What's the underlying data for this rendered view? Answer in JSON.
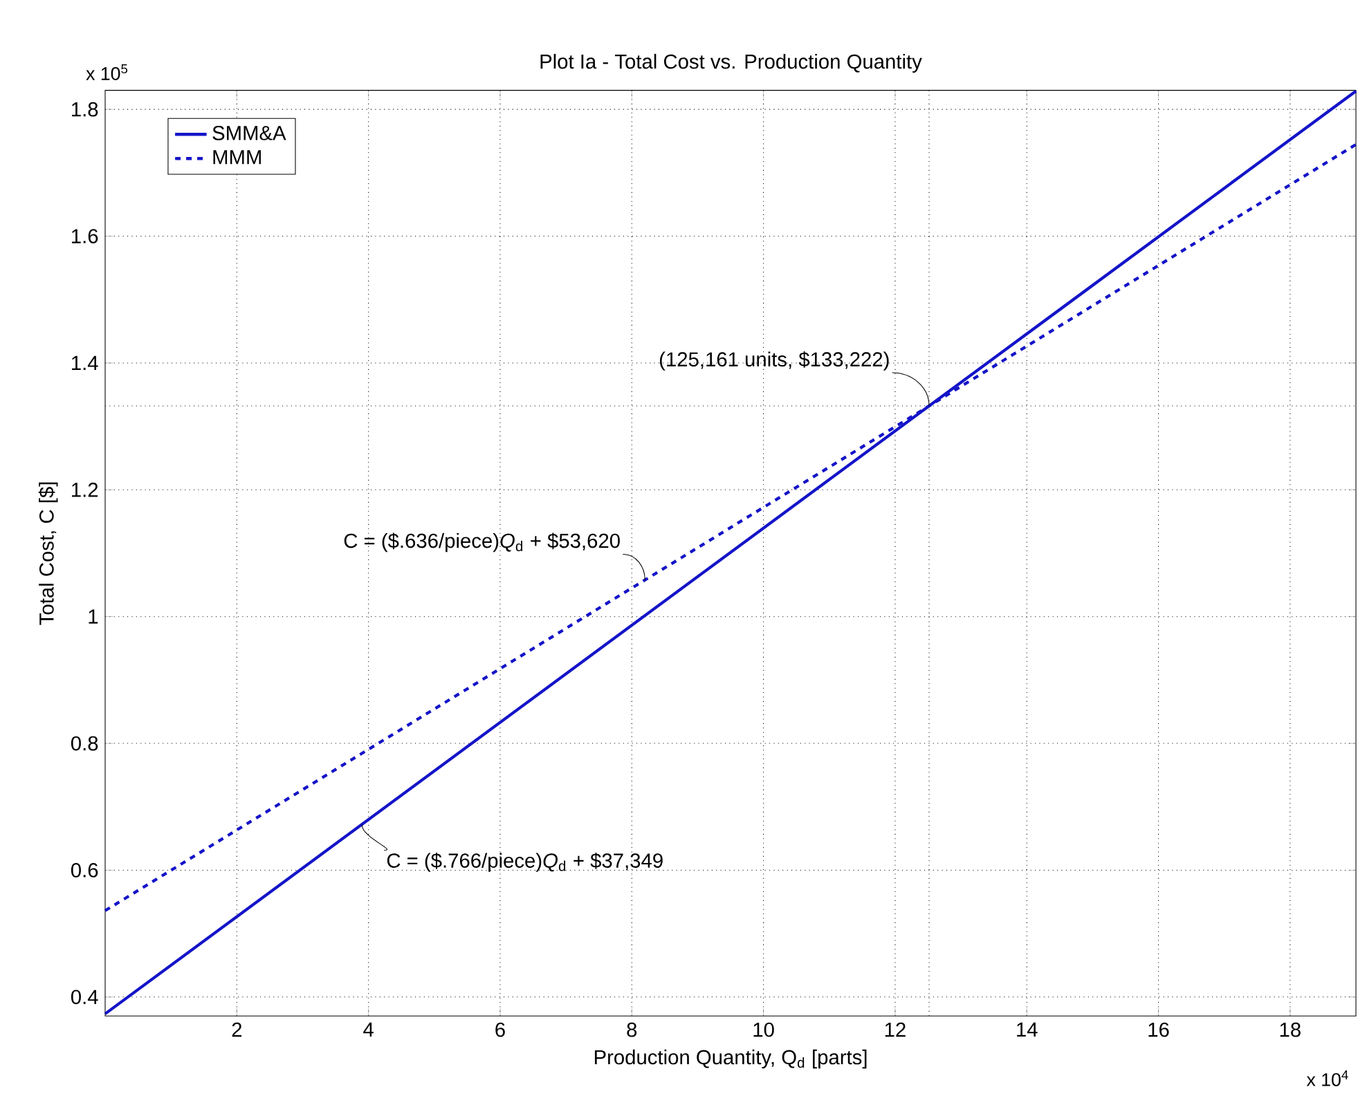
{
  "chart_data": {
    "type": "line",
    "title": "Plot Ia - Total Cost vs. Production Quantity",
    "xlabel": "Production Quantity, Q$_{d}$ [parts]",
    "ylabel": "Total Cost, C [$]",
    "x": [
      0,
      19
    ],
    "series": [
      {
        "name": "SMM&A",
        "color": "#1414c8",
        "line_style": "solid",
        "values": [
          0.37349,
          1.82889
        ]
      },
      {
        "name": "MMM",
        "color": "#1414c8",
        "line_style": "dashed",
        "values": [
          0.5362,
          1.7446
        ]
      }
    ],
    "xlim": [
      0,
      19
    ],
    "ylim": [
      0.37,
      1.83
    ],
    "xticks": [
      2,
      4,
      6,
      8,
      10,
      12,
      14,
      16,
      18
    ],
    "yticks": [
      0.4,
      0.6,
      0.8,
      1,
      1.2,
      1.4,
      1.6,
      1.8
    ],
    "grid": true,
    "legend": "top left",
    "ref_lines": [
      {
        "axis": "x",
        "value": 12.5161,
        "color": "#000000",
        "line_style": "dotted"
      },
      {
        "axis": "y",
        "value": 1.33222,
        "color": "#000000",
        "line_style": "dotted"
      }
    ],
    "annotations": [
      {
        "text": "(125,161 units, $133,222)",
        "x": 12.5161,
        "y": 1.33222
      },
      {
        "text": "C = ($.636/piece)*Q*$_{d}$ + $53,620",
        "x": 8.2,
        "y": 1.0577
      },
      {
        "text": "C = ($.766/piece)*Q*$_{d}$ + $37,349",
        "x": 3.9,
        "y": 0.672
      },
      "x 10$^{5}$",
      "x 10$^{4}$"
    ]
  }
}
